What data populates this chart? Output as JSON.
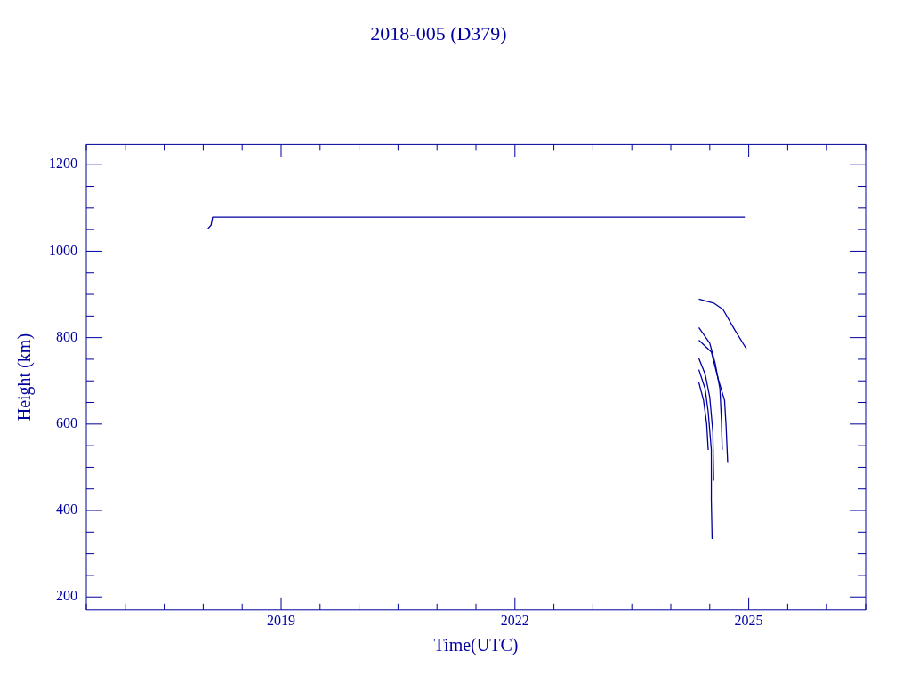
{
  "chart_data": {
    "type": "line",
    "title": "2018-005 (D379)",
    "xlabel": "Time(UTC)",
    "ylabel": "Height (km)",
    "xlim": [
      2016.5,
      2026.5
    ],
    "ylim": [
      170,
      1247
    ],
    "xticks": [
      {
        "value": 2016.5,
        "label": null
      },
      {
        "value": 2017,
        "label": null
      },
      {
        "value": 2017.5,
        "label": null
      },
      {
        "value": 2018,
        "label": null
      },
      {
        "value": 2018.5,
        "label": null
      },
      2019,
      {
        "value": 2019.5,
        "label": null
      },
      {
        "value": 2020,
        "label": null
      },
      {
        "value": 2020.5,
        "label": null
      },
      {
        "value": 2021,
        "label": null
      },
      {
        "value": 2021.5,
        "label": null
      },
      2022,
      {
        "value": 2022.5,
        "label": null
      },
      {
        "value": 2023,
        "label": null
      },
      {
        "value": 2023.5,
        "label": null
      },
      {
        "value": 2024,
        "label": null
      },
      {
        "value": 2024.5,
        "label": null
      },
      2025,
      {
        "value": 2025.5,
        "label": null
      },
      {
        "value": 2026,
        "label": null
      },
      {
        "value": 2026.5,
        "label": null
      }
    ],
    "yticks": [
      200,
      {
        "value": 250,
        "label": null
      },
      {
        "value": 300,
        "label": null
      },
      {
        "value": 350,
        "label": null
      },
      400,
      {
        "value": 450,
        "label": null
      },
      {
        "value": 500,
        "label": null
      },
      {
        "value": 550,
        "label": null
      },
      600,
      {
        "value": 650,
        "label": null
      },
      {
        "value": 700,
        "label": null
      },
      {
        "value": 750,
        "label": null
      },
      800,
      {
        "value": 850,
        "label": null
      },
      {
        "value": 900,
        "label": null
      },
      {
        "value": 950,
        "label": null
      },
      1000,
      {
        "value": 1050,
        "label": null
      },
      {
        "value": 1100,
        "label": null
      },
      {
        "value": 1150,
        "label": null
      },
      1200
    ],
    "marker": "none",
    "legend": false,
    "series": [
      {
        "color": "#0000a0",
        "x": [
          2018.06,
          2018.1,
          2018.12,
          2024.95
        ],
        "values": [
          1052,
          1060,
          1079,
          1079
        ]
      },
      {
        "color": "#0000a0",
        "x": [
          2024.36,
          2024.55,
          2024.67,
          2024.82,
          2024.97
        ],
        "values": [
          889,
          880,
          865,
          818,
          774
        ]
      },
      {
        "color": "#0000a0",
        "x": [
          2024.36,
          2024.5,
          2024.57,
          2024.63,
          2024.65,
          2024.66
        ],
        "values": [
          823,
          787,
          740,
          682,
          608,
          540
        ]
      },
      {
        "color": "#0000a0",
        "x": [
          2024.36,
          2024.52,
          2024.61,
          2024.69,
          2024.71,
          2024.73
        ],
        "values": [
          794,
          767,
          703,
          655,
          594,
          510
        ]
      },
      {
        "color": "#0000a0",
        "x": [
          2024.36,
          2024.44,
          2024.5,
          2024.54,
          2024.55
        ],
        "values": [
          752,
          716,
          662,
          581,
          469
        ]
      },
      {
        "color": "#0000a0",
        "x": [
          2024.36,
          2024.44,
          2024.48,
          2024.52,
          2024.52,
          2024.53
        ],
        "values": [
          726,
          682,
          628,
          540,
          425,
          334
        ]
      },
      {
        "color": "#0000a0",
        "x": [
          2024.36,
          2024.42,
          2024.46,
          2024.48
        ],
        "values": [
          696,
          655,
          601,
          540
        ]
      }
    ]
  }
}
